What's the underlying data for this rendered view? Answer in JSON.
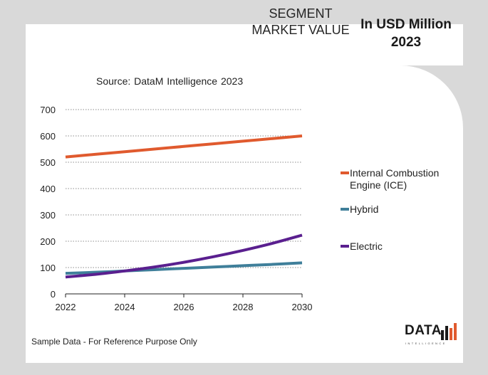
{
  "header": {
    "segment_title": "SEGMENT MARKET VALUE",
    "unit_title": "In USD Million 2023"
  },
  "source": "Source: DataM Intelligence  2023",
  "footnote": "Sample Data - For Reference Purpose Only",
  "logo": {
    "word": "DATA",
    "sub": "INTELLIGENCE"
  },
  "chart_data": {
    "type": "line",
    "x": [
      2022,
      2023,
      2024,
      2025,
      2026,
      2027,
      2028,
      2029,
      2030
    ],
    "x_ticks": [
      2022,
      2024,
      2026,
      2028,
      2030
    ],
    "ylim": [
      0,
      700
    ],
    "y_ticks": [
      0,
      100,
      200,
      300,
      400,
      500,
      600,
      700
    ],
    "grid": "horizontal dotted",
    "legend_position": "right",
    "series": [
      {
        "name": "Internal Combustion Engine (ICE)",
        "color": "#e05a2e",
        "values": [
          520,
          530,
          540,
          550,
          560,
          570,
          580,
          590,
          600
        ]
      },
      {
        "name": "Hybrid",
        "color": "#3f7f9a",
        "values": [
          78,
          82,
          87,
          92,
          97,
          102,
          107,
          112,
          118
        ]
      },
      {
        "name": "Electric",
        "color": "#5a1f8f",
        "values": [
          64,
          74,
          87,
          102,
          120,
          141,
          165,
          192,
          223
        ]
      }
    ]
  }
}
